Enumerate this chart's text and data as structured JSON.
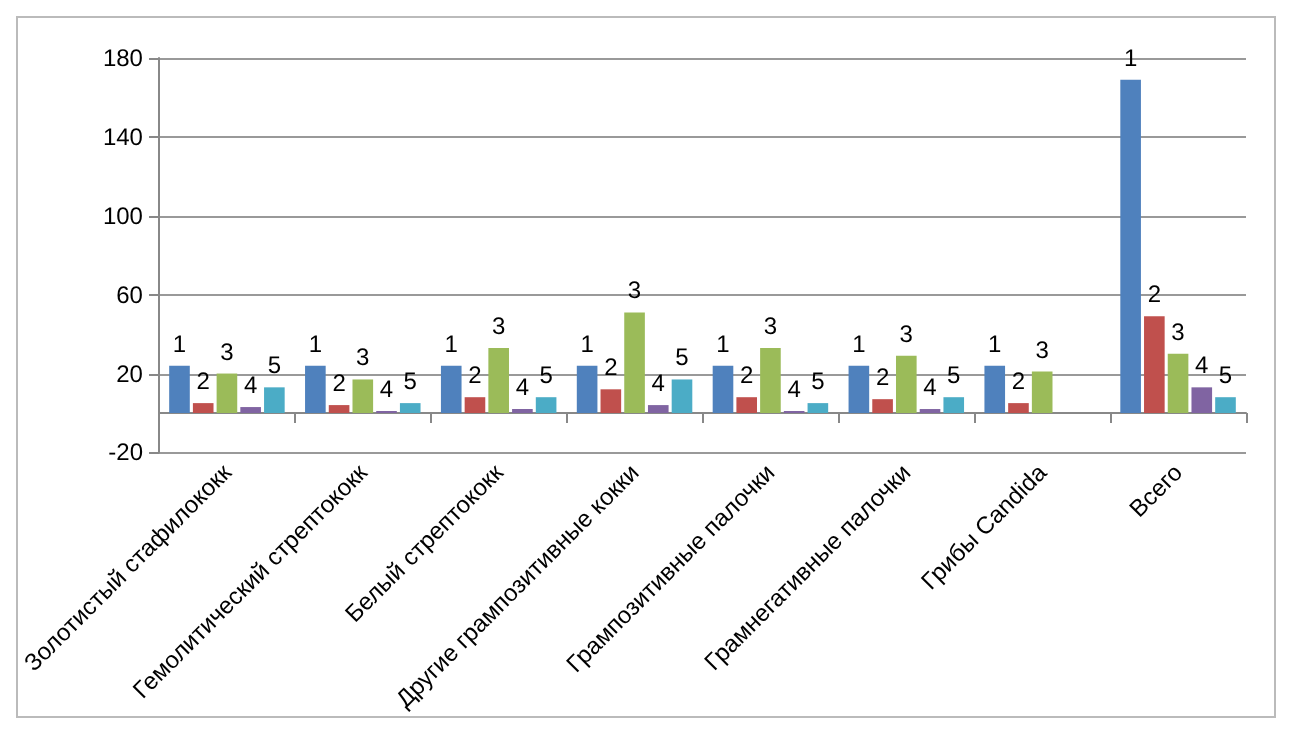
{
  "chart_data": {
    "type": "bar",
    "categories": [
      "Золотистый стафилококк",
      "Гемолитический стрептококк",
      "Белый стрептококк",
      "Другие грампозитивные кокки",
      "Грампозитивные палочки",
      "Грамнегативные палочки",
      "Грибы Candida",
      "Всего"
    ],
    "series": [
      {
        "name": "1",
        "color": "#4f81bd",
        "values": [
          24,
          24,
          24,
          24,
          24,
          24,
          24,
          169
        ]
      },
      {
        "name": "2",
        "color": "#c0504d",
        "values": [
          5,
          4,
          8,
          12,
          8,
          7,
          5,
          49
        ]
      },
      {
        "name": "3",
        "color": "#9bbb59",
        "values": [
          20,
          17,
          33,
          51,
          33,
          29,
          21,
          30
        ]
      },
      {
        "name": "4",
        "color": "#8064a2",
        "values": [
          3,
          1,
          2,
          4,
          1,
          2,
          null,
          13
        ]
      },
      {
        "name": "5",
        "color": "#4bacc6",
        "values": [
          13,
          5,
          8,
          17,
          5,
          8,
          null,
          8
        ]
      }
    ],
    "ylim": [
      -20,
      180
    ],
    "yticks": [
      -20,
      20,
      60,
      100,
      140,
      180
    ],
    "grid": "y",
    "legend": false
  }
}
